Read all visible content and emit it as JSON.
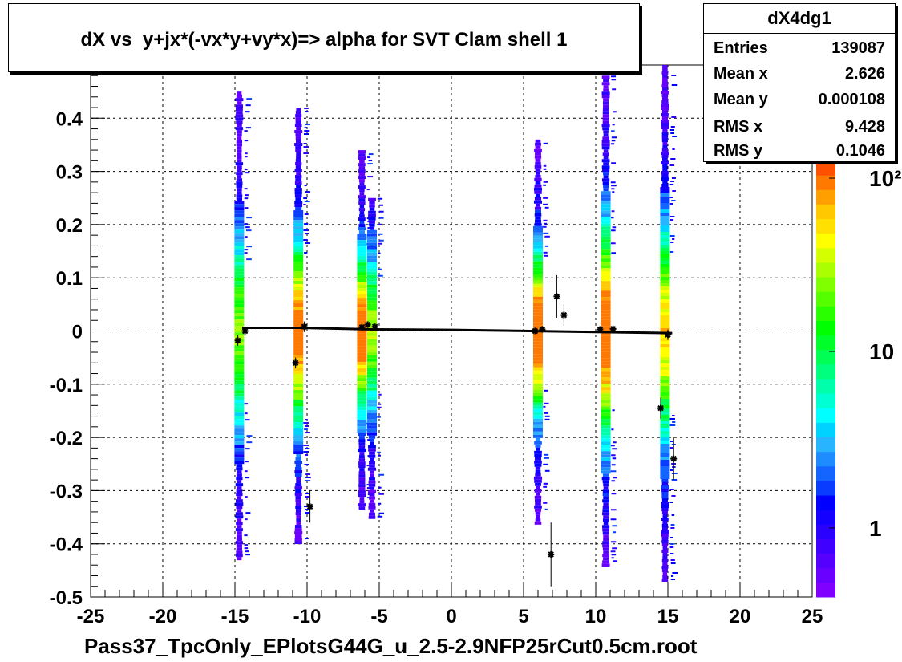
{
  "title": "dX vs  y+jx*(-vx*y+vy*x)=> alpha for SVT Clam shell 1",
  "stats": {
    "name": "dX4dg1",
    "rows": [
      {
        "key": "Entries",
        "value": "139087"
      },
      {
        "key": "Mean x",
        "value": "2.626"
      },
      {
        "key": "Mean y",
        "value": "0.000108"
      },
      {
        "key": "RMS x",
        "value": "9.428"
      },
      {
        "key": "RMS y",
        "value": "0.1046"
      }
    ]
  },
  "chart_data": {
    "type": "heatmap",
    "xlabel": "Pass37_TpcOnly_EPlotsG44G_u_2.5-2.9NFP25rCut0.5cm.root",
    "ylabel": "",
    "xlim": [
      -25,
      25
    ],
    "ylim": [
      -0.5,
      0.5
    ],
    "x_ticks": [
      "-25",
      "-20",
      "-15",
      "-10",
      "-5",
      "0",
      "5",
      "10",
      "15",
      "20",
      "25"
    ],
    "y_ticks": [
      "-0.5",
      "-0.4",
      "-0.3",
      "-0.2",
      "-0.1",
      "0",
      "0.1",
      "0.2",
      "0.3",
      "0.4"
    ],
    "grid": true,
    "colorbar": {
      "scale": "log",
      "tick_labels": [
        "1",
        "10",
        "10²"
      ],
      "colors": [
        "#7f00ff",
        "#6a00ff",
        "#5500ff",
        "#3f00ff",
        "#2a00ff",
        "#1400ff",
        "#0000ff",
        "#0a3cff",
        "#1464ff",
        "#1e8cff",
        "#28b4ff",
        "#00d2ff",
        "#00ffff",
        "#00ffd2",
        "#00ffaa",
        "#00ff7f",
        "#00ff55",
        "#00ff2a",
        "#00ff00",
        "#2aff00",
        "#55ff00",
        "#7fff00",
        "#aaff00",
        "#d4ff00",
        "#ffff00",
        "#ffe000",
        "#ffc800",
        "#ffa000",
        "#ff7800",
        "#ff5000"
      ]
    },
    "bands": [
      {
        "x": -14.7,
        "ymin": -0.43,
        "ymax": 0.45,
        "peak": 0.55
      },
      {
        "x": -10.6,
        "ymin": -0.4,
        "ymax": 0.42,
        "peak": 0.85
      },
      {
        "x": -6.2,
        "ymin": -0.33,
        "ymax": 0.34,
        "peak": 0.9
      },
      {
        "x": -5.5,
        "ymin": -0.35,
        "ymax": 0.25,
        "peak": 0.6
      },
      {
        "x": 6.0,
        "ymin": -0.36,
        "ymax": 0.36,
        "peak": 0.95
      },
      {
        "x": 10.7,
        "ymin": -0.44,
        "ymax": 0.48,
        "peak": 0.9
      },
      {
        "x": 14.8,
        "ymin": -0.47,
        "ymax": 0.5,
        "peak": 0.7
      }
    ],
    "profile_points": [
      {
        "x": -14.8,
        "y": -0.018,
        "err": 0.01
      },
      {
        "x": -14.3,
        "y": 0.0,
        "err": 0.01
      },
      {
        "x": -10.8,
        "y": -0.06,
        "err": 0.01
      },
      {
        "x": -10.2,
        "y": 0.008,
        "err": 0.01
      },
      {
        "x": -9.8,
        "y": -0.33,
        "err": 0.03
      },
      {
        "x": -6.2,
        "y": 0.007,
        "err": 0.005
      },
      {
        "x": -5.8,
        "y": 0.012,
        "err": 0.005
      },
      {
        "x": -5.3,
        "y": 0.008,
        "err": 0.005
      },
      {
        "x": 5.8,
        "y": 0.0,
        "err": 0.005
      },
      {
        "x": 6.3,
        "y": 0.003,
        "err": 0.005
      },
      {
        "x": 6.9,
        "y": -0.42,
        "err": 0.06
      },
      {
        "x": 7.3,
        "y": 0.065,
        "err": 0.04
      },
      {
        "x": 7.8,
        "y": 0.03,
        "err": 0.02
      },
      {
        "x": 10.3,
        "y": 0.003,
        "err": 0.005
      },
      {
        "x": 11.2,
        "y": 0.004,
        "err": 0.005
      },
      {
        "x": 14.5,
        "y": -0.145,
        "err": 0.02
      },
      {
        "x": 15.0,
        "y": -0.007,
        "err": 0.01
      },
      {
        "x": 15.4,
        "y": -0.24,
        "err": 0.04
      }
    ],
    "fit_line": [
      {
        "x": -14.5,
        "y": 0.006
      },
      {
        "x": -10.5,
        "y": 0.006
      },
      {
        "x": -5.5,
        "y": 0.003
      },
      {
        "x": 0,
        "y": 0.002
      },
      {
        "x": 5.5,
        "y": 0.0
      },
      {
        "x": 10.5,
        "y": -0.002
      },
      {
        "x": 15.3,
        "y": -0.004
      }
    ]
  }
}
